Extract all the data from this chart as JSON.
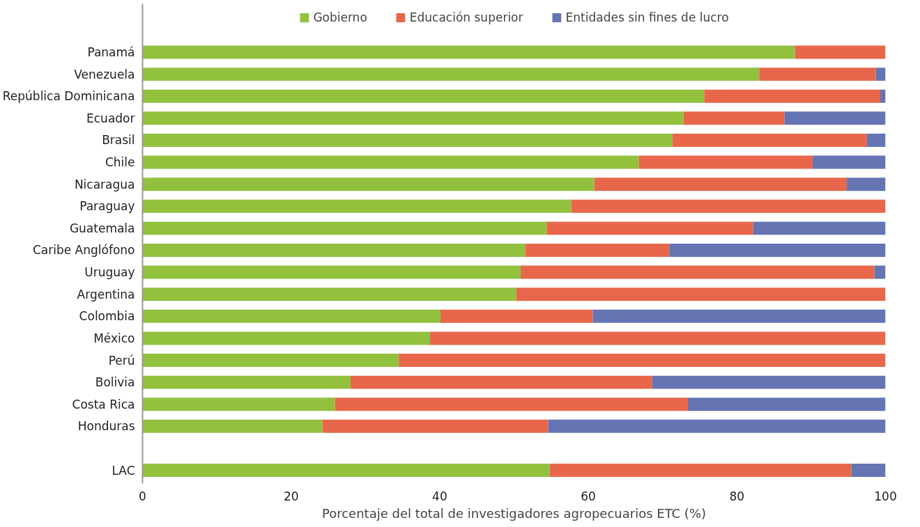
{
  "chart_data": {
    "type": "bar",
    "orientation": "horizontal",
    "stacked": true,
    "xlabel": "Porcentaje del total de investigadores agropecuarios ETC (%)",
    "categories": [
      "Panamá",
      "Venezuela",
      "República Dominicana",
      "Ecuador",
      "Brasil",
      "Chile",
      "Nicaragua",
      "Paraguay",
      "Guatemala",
      "Caribe Anglófono",
      "Uruguay",
      "Argentina",
      "Colombia",
      "México",
      "Perú",
      "Bolivia",
      "Costa Rica",
      "Honduras",
      null,
      "LAC"
    ],
    "series": [
      {
        "name": "Gobierno",
        "color": "#92c13e",
        "values": [
          87.8,
          83.0,
          75.6,
          72.8,
          71.3,
          66.8,
          60.8,
          57.7,
          54.4,
          51.5,
          50.9,
          50.3,
          40.1,
          38.7,
          34.5,
          28.0,
          25.9,
          24.2,
          null,
          54.8
        ]
      },
      {
        "name": "Educación superior",
        "color": "#e8674a",
        "values": [
          12.2,
          15.7,
          23.7,
          13.6,
          26.2,
          23.4,
          34.0,
          42.3,
          27.8,
          19.4,
          47.6,
          49.7,
          20.5,
          61.3,
          65.5,
          40.6,
          47.5,
          30.4,
          null,
          40.6
        ]
      },
      {
        "name": "Entidades sin fines de lucro",
        "color": "#6574b3",
        "values": [
          0,
          1.3,
          0.7,
          13.6,
          2.5,
          9.8,
          5.2,
          0,
          17.8,
          29.1,
          1.5,
          0,
          39.4,
          0,
          0,
          31.4,
          26.6,
          45.4,
          null,
          4.6
        ]
      }
    ],
    "xlim": [
      0,
      100
    ],
    "xticks": [
      0,
      20,
      40,
      60,
      80,
      100
    ],
    "legend": "top",
    "grid": false
  }
}
